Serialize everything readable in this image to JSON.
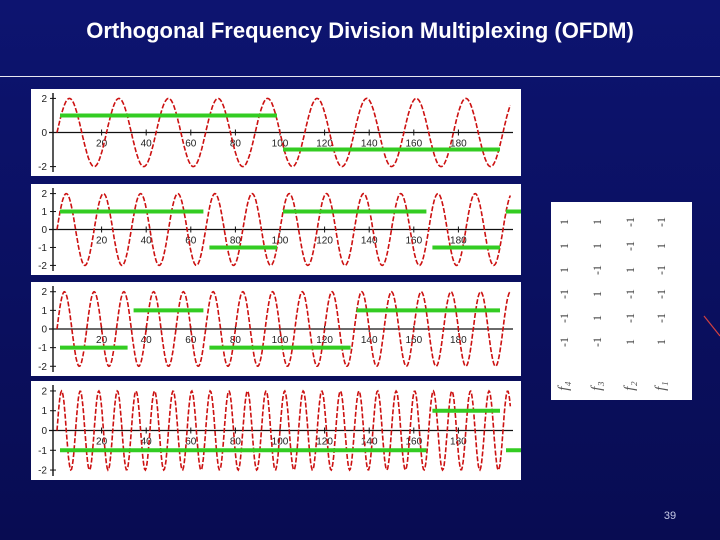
{
  "title": "Orthogonal Frequency Division Multiplexing (OFDM)",
  "page_number": "39",
  "colors": {
    "background": "#0a0f5e",
    "wave": "#cc1111",
    "bits": "#33cc22",
    "axis": "#111111"
  },
  "panels": [
    {
      "y_ticks": [
        "2",
        "0",
        "-2"
      ],
      "x_ticks": [
        "20",
        "40",
        "60",
        "80",
        "100",
        "120",
        "140",
        "160",
        "180"
      ],
      "cycles": 9,
      "bits": [
        {
          "x0": 0,
          "x1": 100,
          "level": 1
        },
        {
          "x0": 100,
          "x1": 200,
          "level": -1
        }
      ]
    },
    {
      "y_ticks": [
        "2",
        "1",
        "0",
        "-1",
        "-2"
      ],
      "x_ticks": [
        "20",
        "40",
        "60",
        "80",
        "100",
        "120",
        "140",
        "160",
        "180"
      ],
      "cycles": 12,
      "bits": [
        {
          "x0": 0,
          "x1": 67,
          "level": 1
        },
        {
          "x0": 67,
          "x1": 100,
          "level": -1
        },
        {
          "x0": 100,
          "x1": 167,
          "level": 1
        },
        {
          "x0": 167,
          "x1": 200,
          "level": -1
        },
        {
          "x0": 200,
          "x1": 210,
          "level": 1
        }
      ]
    },
    {
      "y_ticks": [
        "2",
        "1",
        "0",
        "-1",
        "-2"
      ],
      "x_ticks": [
        "20",
        "40",
        "60",
        "80",
        "100",
        "120",
        "140",
        "160",
        "180"
      ],
      "cycles": 15,
      "bits": [
        {
          "x0": 0,
          "x1": 33,
          "level": -1
        },
        {
          "x0": 33,
          "x1": 67,
          "level": 1
        },
        {
          "x0": 67,
          "x1": 133,
          "level": -1
        },
        {
          "x0": 133,
          "x1": 200,
          "level": 1
        }
      ]
    },
    {
      "y_ticks": [
        "2",
        "1",
        "0",
        "-1",
        "-2"
      ],
      "x_ticks": [
        "20",
        "40",
        "60",
        "80",
        "100",
        "120",
        "140",
        "160",
        "180"
      ],
      "cycles": 24,
      "bits": [
        {
          "x0": 0,
          "x1": 167,
          "level": -1
        },
        {
          "x0": 167,
          "x1": 200,
          "level": 1
        },
        {
          "x0": 200,
          "x1": 210,
          "level": -1
        }
      ]
    }
  ],
  "matrix": {
    "rows": [
      {
        "label": "f₄",
        "values": [
          "1",
          "1",
          "1",
          "-1",
          "-1",
          "-1"
        ]
      },
      {
        "label": "f₃",
        "values": [
          "1",
          "1",
          "-1",
          "1",
          "1",
          "-1"
        ]
      },
      {
        "label": "f₂",
        "values": [
          "-1",
          "-1",
          "1",
          "-1",
          "-1",
          "1"
        ]
      },
      {
        "label": "f₁",
        "values": [
          "-1",
          "1",
          "-1",
          "-1",
          "-1",
          "1"
        ]
      }
    ]
  }
}
